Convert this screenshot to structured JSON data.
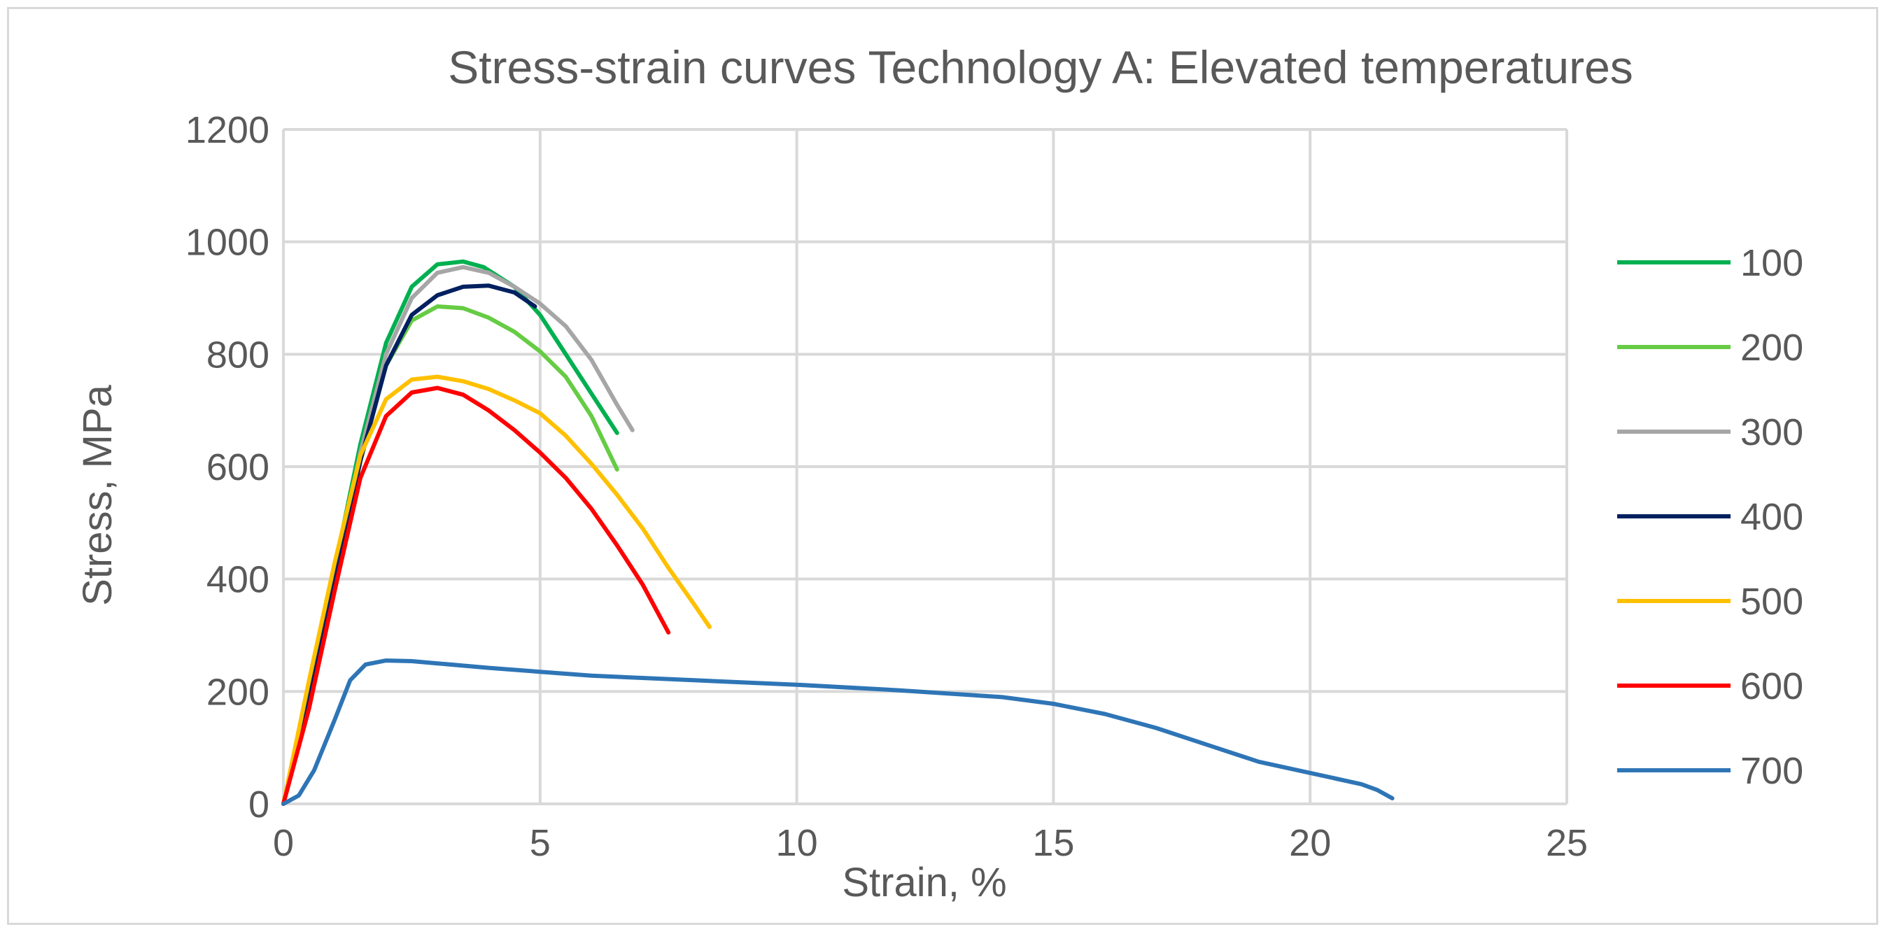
{
  "chart_data": {
    "type": "line",
    "title": "Stress-strain curves Technology A: Elevated temperatures",
    "xlabel": "Strain, %",
    "ylabel": "Stress, MPa",
    "xlim": [
      0,
      25
    ],
    "ylim": [
      0,
      1200
    ],
    "xticks": [
      0,
      5,
      10,
      15,
      20,
      25
    ],
    "yticks": [
      0,
      200,
      400,
      600,
      800,
      1000,
      1200
    ],
    "grid": true,
    "legend_position": "right",
    "series": [
      {
        "name": "100",
        "color": "#00b050",
        "x": [
          0,
          0.5,
          1.0,
          1.5,
          2.0,
          2.5,
          3.0,
          3.5,
          3.9,
          4.5,
          5.0,
          5.5,
          6.0,
          6.5
        ],
        "y": [
          0,
          200,
          420,
          640,
          820,
          920,
          960,
          965,
          955,
          920,
          870,
          800,
          730,
          660
        ]
      },
      {
        "name": "200",
        "color": "#66cc44",
        "x": [
          0,
          0.5,
          1.0,
          1.5,
          2.0,
          2.5,
          3.0,
          3.5,
          4.0,
          4.5,
          5.0,
          5.5,
          6.0,
          6.5
        ],
        "y": [
          0,
          200,
          410,
          620,
          780,
          860,
          885,
          882,
          865,
          840,
          805,
          760,
          690,
          595
        ]
      },
      {
        "name": "300",
        "color": "#a6a6a6",
        "x": [
          0,
          0.5,
          1.0,
          1.5,
          2.0,
          2.5,
          3.0,
          3.5,
          4.0,
          4.5,
          5.0,
          5.5,
          6.0,
          6.5,
          6.8
        ],
        "y": [
          0,
          200,
          410,
          625,
          800,
          900,
          945,
          955,
          945,
          920,
          890,
          850,
          790,
          710,
          665
        ]
      },
      {
        "name": "400",
        "color": "#002060",
        "x": [
          0,
          0.5,
          1.0,
          1.5,
          2.0,
          2.5,
          3.0,
          3.5,
          4.0,
          4.5,
          4.9
        ],
        "y": [
          0,
          190,
          400,
          610,
          780,
          870,
          905,
          920,
          922,
          910,
          885
        ]
      },
      {
        "name": "500",
        "color": "#ffc000",
        "x": [
          0,
          0.5,
          1.0,
          1.5,
          2.0,
          2.5,
          3.0,
          3.5,
          4.0,
          4.5,
          5.0,
          5.5,
          6.0,
          6.5,
          7.0,
          7.5,
          8.0,
          8.3
        ],
        "y": [
          0,
          220,
          430,
          620,
          720,
          755,
          760,
          752,
          738,
          718,
          695,
          655,
          605,
          550,
          490,
          420,
          355,
          315
        ]
      },
      {
        "name": "600",
        "color": "#ff0000",
        "x": [
          0,
          0.5,
          1.0,
          1.5,
          2.0,
          2.5,
          3.0,
          3.5,
          4.0,
          4.5,
          5.0,
          5.5,
          6.0,
          6.5,
          7.0,
          7.5
        ],
        "y": [
          0,
          170,
          380,
          580,
          690,
          732,
          740,
          728,
          700,
          665,
          625,
          580,
          525,
          460,
          390,
          305
        ]
      },
      {
        "name": "700",
        "color": "#2e75b6",
        "x": [
          0,
          0.3,
          0.6,
          1.0,
          1.3,
          1.6,
          2.0,
          2.5,
          3.0,
          4.0,
          5.0,
          6.0,
          8.0,
          10.0,
          12.0,
          14.0,
          15.0,
          16.0,
          17.0,
          18.0,
          19.0,
          20.0,
          21.0,
          21.3,
          21.6
        ],
        "y": [
          0,
          15,
          60,
          150,
          220,
          248,
          255,
          254,
          250,
          242,
          235,
          228,
          220,
          212,
          202,
          190,
          178,
          160,
          135,
          105,
          75,
          55,
          35,
          25,
          10
        ]
      }
    ]
  }
}
